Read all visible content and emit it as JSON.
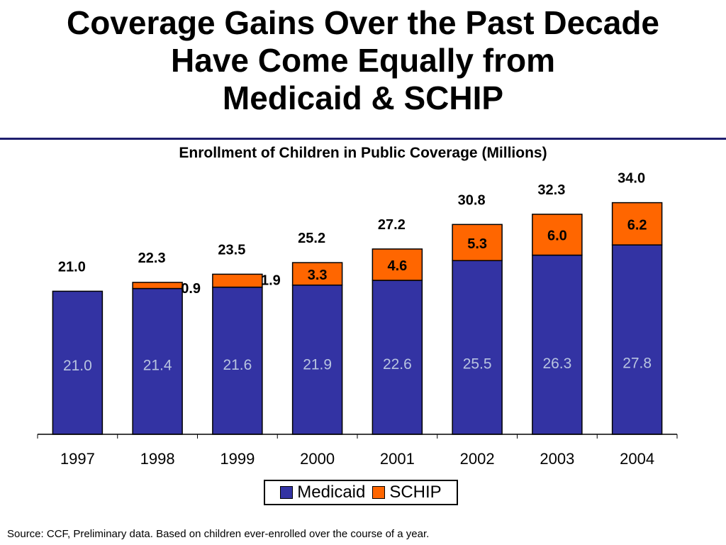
{
  "slide": {
    "title_lines": [
      "Coverage Gains Over the Past Decade",
      "Have Come Equally from",
      "Medicaid & SCHIP"
    ],
    "source": "Source:  CCF, Preliminary data.  Based on children ever-enrolled over the course of a year."
  },
  "colors": {
    "medicaid": "#3333a3",
    "schip": "#ff6600",
    "rule": "#1f1f6e"
  },
  "chart_data": {
    "type": "bar",
    "stacked": true,
    "title": "Enrollment of Children in Public Coverage (Millions)",
    "categories": [
      "1997",
      "1998",
      "1999",
      "2000",
      "2001",
      "2002",
      "2003",
      "2004"
    ],
    "series": [
      {
        "name": "Medicaid",
        "values": [
          21.0,
          21.4,
          21.6,
          21.9,
          22.6,
          25.5,
          26.3,
          27.8
        ],
        "value_labels": [
          "21.0",
          "21.4",
          "21.6",
          "21.9",
          "22.6",
          "25.5",
          "26.3",
          "27.8"
        ]
      },
      {
        "name": "SCHIP",
        "values": [
          0,
          0.9,
          1.9,
          3.3,
          4.6,
          5.3,
          6.0,
          6.2
        ],
        "value_labels": [
          "",
          "0.9",
          "1.9",
          "3.3",
          "4.6",
          "5.3",
          "6.0",
          "6.2"
        ]
      }
    ],
    "totals": [
      "21.0",
      "22.3",
      "23.5",
      "25.2",
      "27.2",
      "30.8",
      "32.3",
      "34.0"
    ],
    "ylim": [
      0,
      40
    ],
    "grid": false,
    "legend_position": "bottom"
  }
}
